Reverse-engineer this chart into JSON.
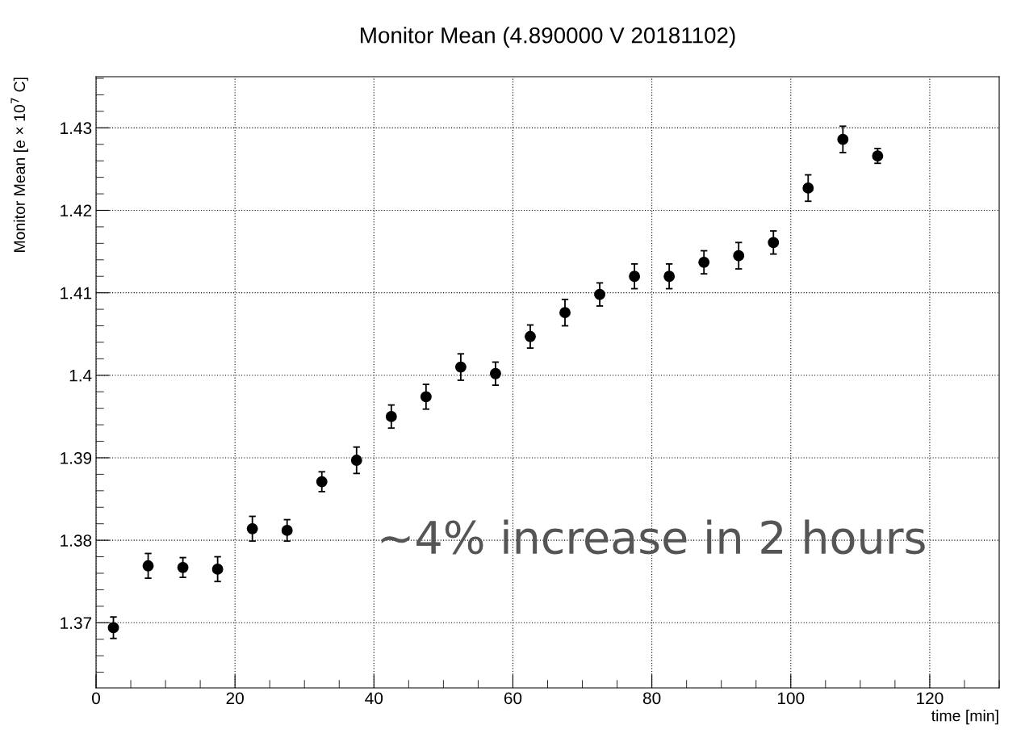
{
  "chart_data": {
    "type": "scatter",
    "title": "Monitor Mean (4.890000 V 20181102)",
    "xlabel": "time [min]",
    "ylabel": "Monitor Mean [e × 10$^{7}$ C]",
    "x": [
      2.5,
      7.5,
      12.5,
      17.5,
      22.5,
      27.5,
      32.5,
      37.5,
      42.5,
      47.5,
      52.5,
      57.5,
      62.5,
      67.5,
      72.5,
      77.5,
      82.5,
      87.5,
      92.5,
      97.5,
      102.5,
      107.5,
      112.5
    ],
    "series": [
      {
        "color": "#000000",
        "values": [
          1.3694,
          1.3769,
          1.3767,
          1.3765,
          1.3814,
          1.3812,
          1.3871,
          1.3897,
          1.395,
          1.3974,
          1.401,
          1.4002,
          1.4047,
          1.4076,
          1.4098,
          1.412,
          1.412,
          1.4137,
          1.4145,
          1.4161,
          1.4227,
          1.4286,
          1.4266
        ],
        "errors": [
          0.0013,
          0.0015,
          0.0012,
          0.0015,
          0.0015,
          0.0013,
          0.0012,
          0.0016,
          0.0014,
          0.0015,
          0.0016,
          0.0014,
          0.0014,
          0.0016,
          0.0014,
          0.0015,
          0.0015,
          0.0014,
          0.0016,
          0.0014,
          0.0016,
          0.0016,
          0.0009
        ]
      }
    ],
    "xlim": [
      0,
      130
    ],
    "xticks": [
      0,
      20,
      40,
      60,
      80,
      100,
      120
    ],
    "ylim": [
      1.3621,
      1.4362
    ],
    "yticks": [
      1.37,
      1.38,
      1.39,
      {
        "value": 1.4,
        "label": "1.4"
      },
      1.41,
      1.42,
      1.43
    ],
    "grid": true,
    "marker": "circle",
    "annotations": [
      "~4% increase in 2 hours"
    ]
  }
}
